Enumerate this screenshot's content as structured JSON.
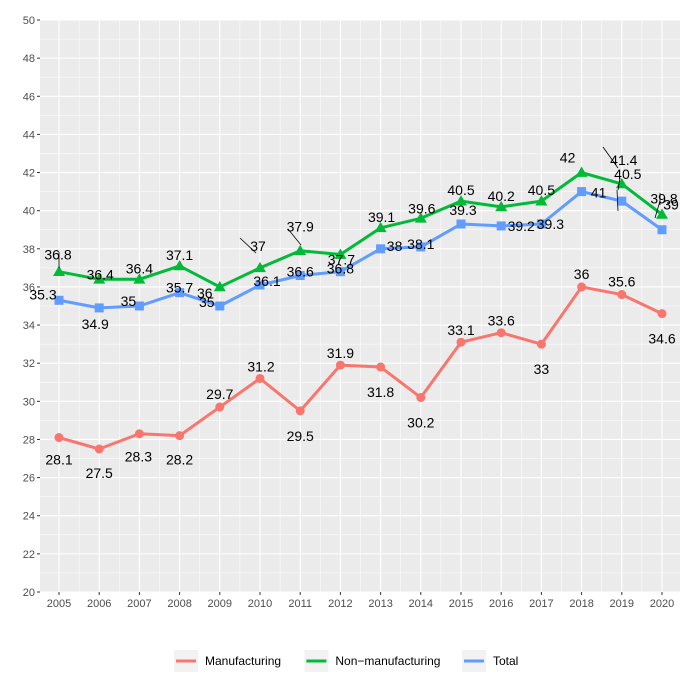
{
  "chart_data": {
    "type": "line",
    "title": "",
    "xlabel": "",
    "ylabel": "",
    "x": [
      "2005",
      "2006",
      "2007",
      "2008",
      "2009",
      "2010",
      "2011",
      "2012",
      "2013",
      "2014",
      "2015",
      "2016",
      "2017",
      "2018",
      "2019",
      "2020"
    ],
    "ylim": [
      20,
      50
    ],
    "yticks": [
      20,
      22,
      24,
      26,
      28,
      30,
      32,
      34,
      36,
      38,
      40,
      42,
      44,
      46,
      48,
      50
    ],
    "grid": true,
    "legend_position": "bottom",
    "series": [
      {
        "name": "Manufacturing",
        "color": "#F8766D",
        "marker": "circle",
        "values": [
          28.1,
          27.5,
          28.3,
          28.2,
          29.7,
          31.2,
          29.5,
          31.9,
          31.8,
          30.2,
          33.1,
          33.6,
          33,
          36,
          35.6,
          34.6
        ],
        "labels": [
          "28.1",
          "27.5",
          "28.3",
          "28.2",
          "29.7",
          "31.2",
          "29.5",
          "31.9",
          "31.8",
          "30.2",
          "33.1",
          "33.6",
          "33",
          "36",
          "35.6",
          "34.6"
        ]
      },
      {
        "name": "Non−manufacturing",
        "color": "#00BA38",
        "marker": "triangle",
        "values": [
          36.8,
          36.4,
          36.4,
          37.1,
          36,
          37,
          37.9,
          37.7,
          39.1,
          39.6,
          40.5,
          40.2,
          40.5,
          42,
          41.4,
          39.8
        ],
        "labels": [
          "36.8",
          "36.4",
          "36.4",
          "37.1",
          "36",
          "37",
          "37.9",
          "37.7",
          "39.1",
          "39.6",
          "40.5",
          "40.2",
          "40.5",
          "42",
          "41.4",
          "39.8"
        ]
      },
      {
        "name": "Total",
        "color": "#619CFF",
        "marker": "square",
        "values": [
          35.3,
          34.9,
          35,
          35.7,
          35,
          36.1,
          36.6,
          36.8,
          38,
          38.1,
          39.3,
          39.2,
          39.3,
          41,
          40.5,
          39
        ],
        "labels": [
          "35.3",
          "34.9",
          "35",
          "35.7",
          "35",
          "36.1",
          "36.6",
          "36.8",
          "38",
          "38.1",
          "39.3",
          "39.2",
          "39.3",
          "41",
          "40.5",
          "39"
        ]
      }
    ]
  }
}
